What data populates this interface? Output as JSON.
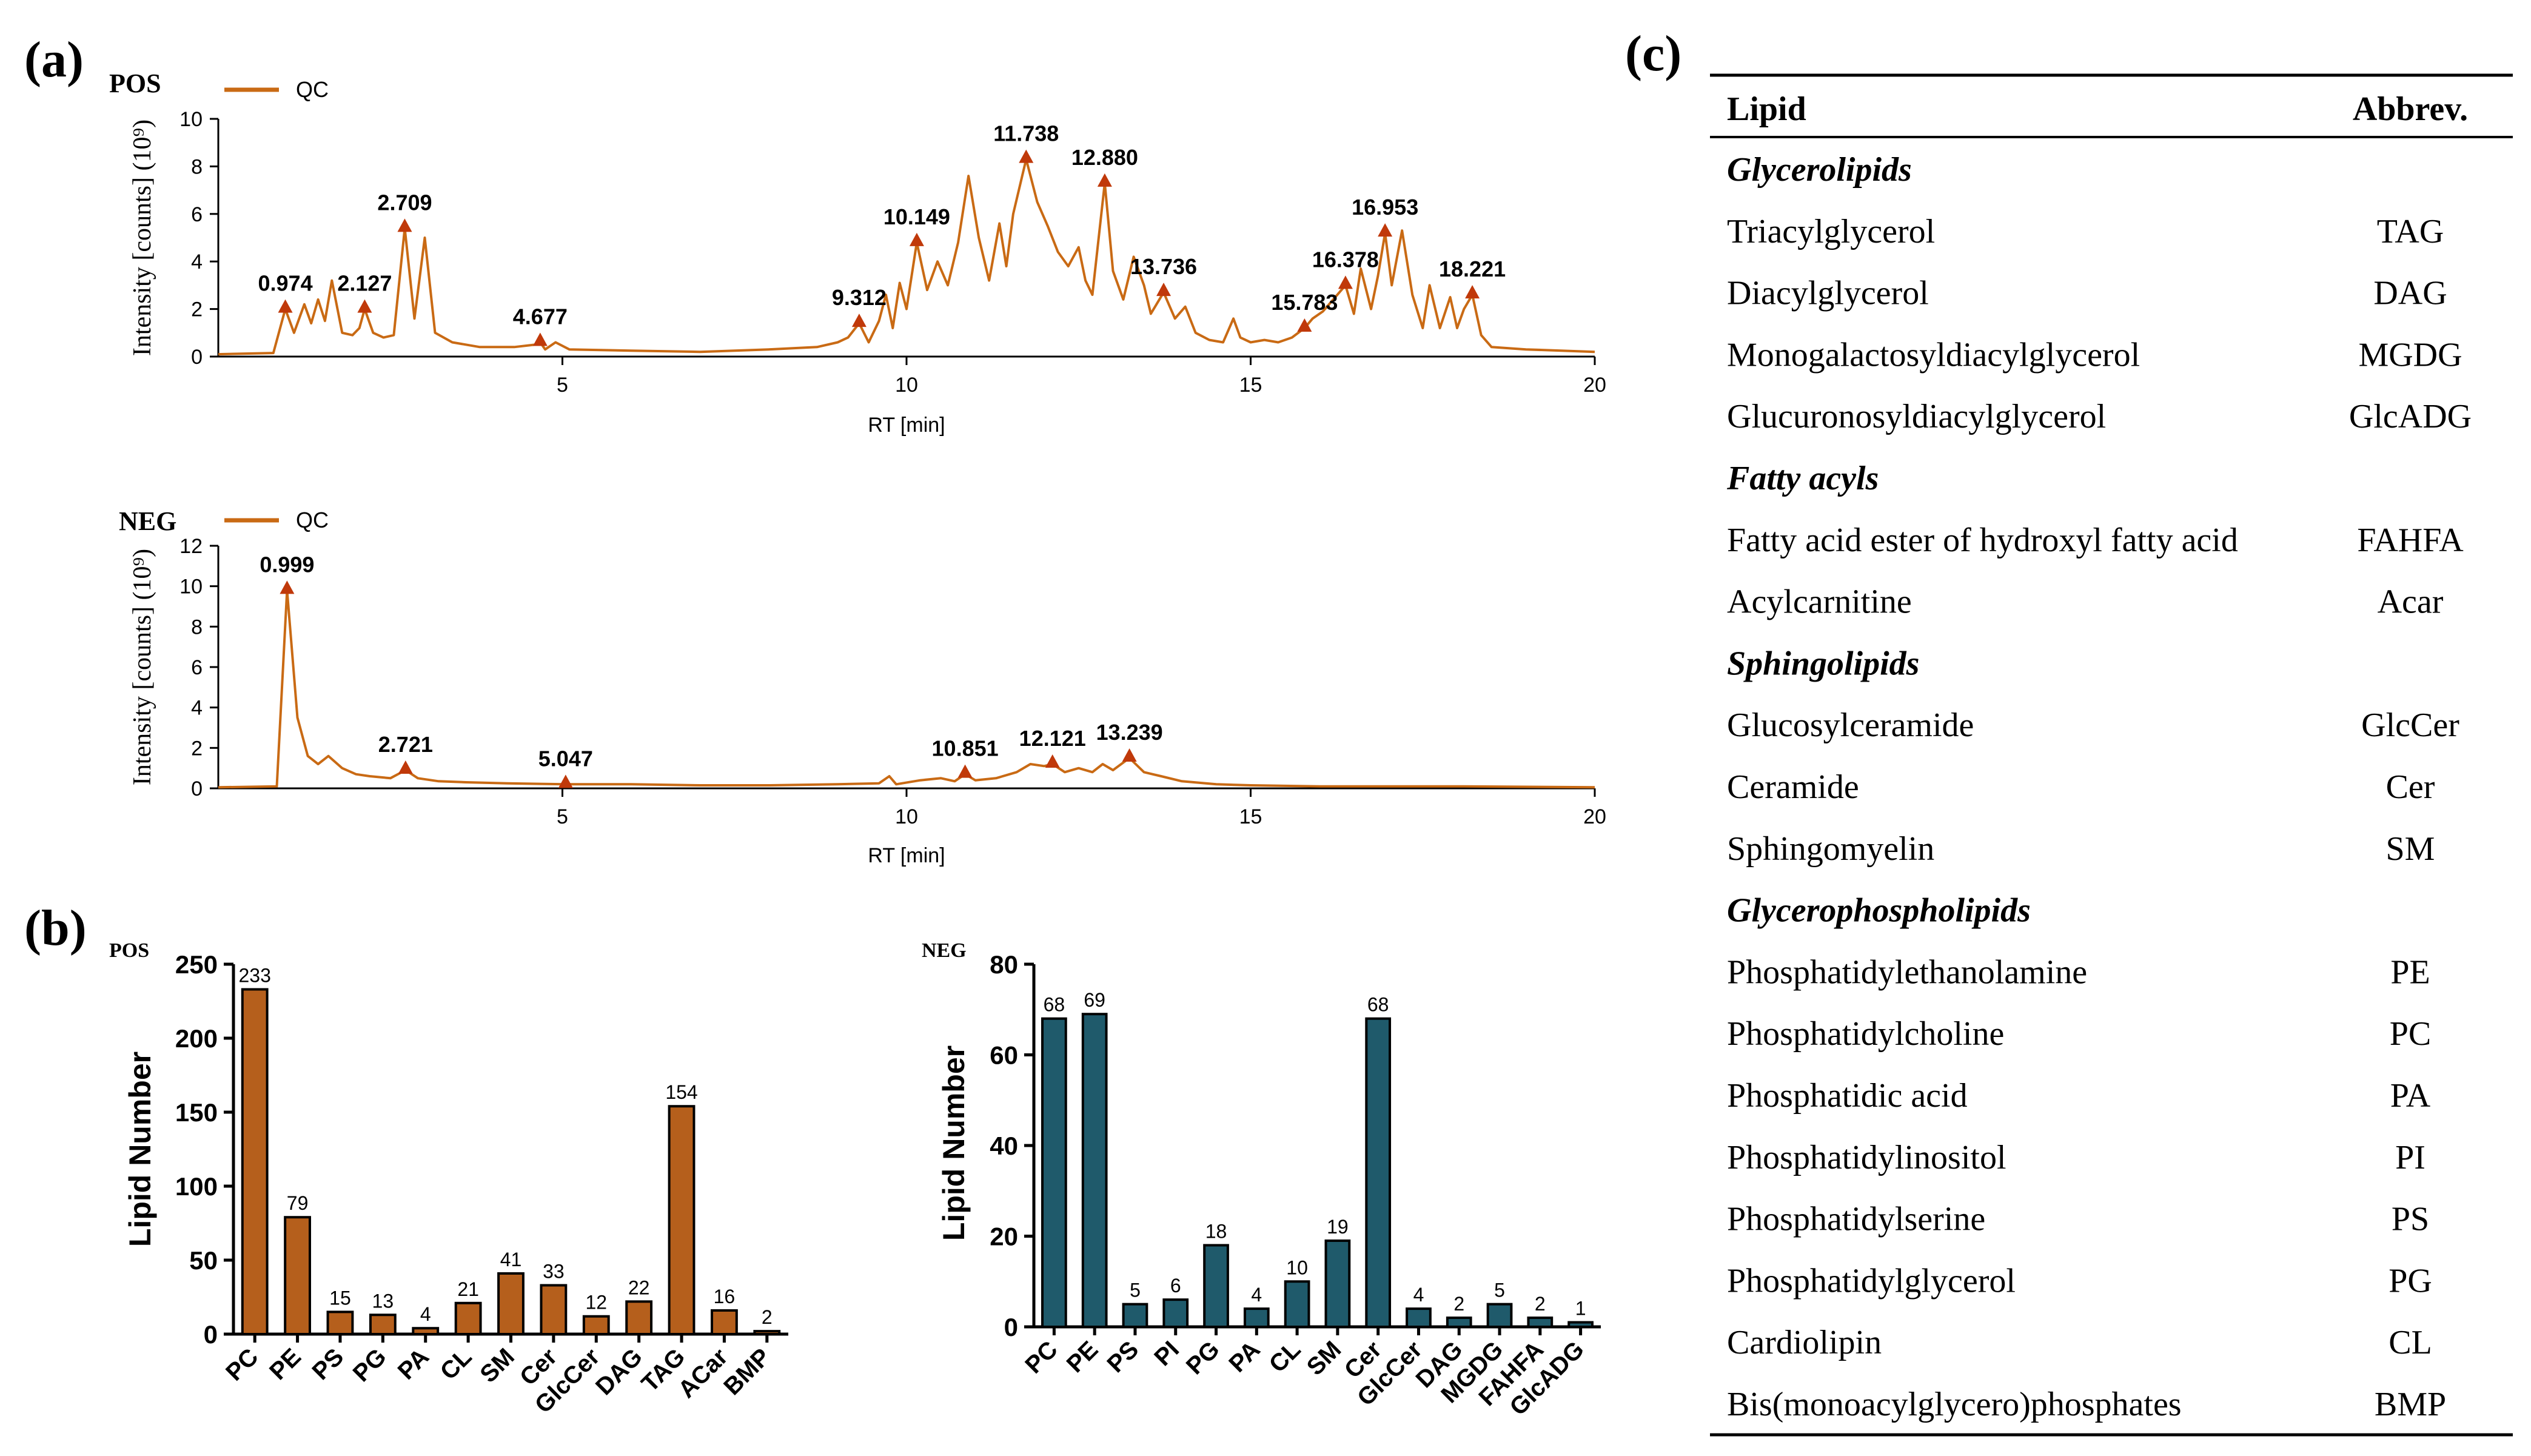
{
  "panels": {
    "a": "(a)",
    "b": "(b)",
    "c": "(c)"
  },
  "colors": {
    "chrom": "#c96a14",
    "marker": "#c0390a",
    "pos_bar": "#b55f1c",
    "neg_bar": "#1f5a6b",
    "axis": "#000000"
  },
  "chart_data": [
    {
      "id": "chromatogram-pos",
      "type": "line",
      "mode_label": "POS",
      "legend": "QC",
      "xlabel": "RT [min]",
      "ylabel": "Intensity [counts] (10⁹)",
      "xlim": [
        0,
        20
      ],
      "ylim": [
        0,
        10
      ],
      "xticks": [
        "5",
        "10",
        "15",
        "20"
      ],
      "yticks": [
        "0",
        "2",
        "4",
        "6",
        "8",
        "10"
      ],
      "peaks": [
        {
          "label": "0.974",
          "x": 0.974,
          "y": 2.0
        },
        {
          "label": "2.127",
          "x": 2.127,
          "y": 2.0
        },
        {
          "label": "2.709",
          "x": 2.709,
          "y": 5.4
        },
        {
          "label": "4.677",
          "x": 4.677,
          "y": 0.6
        },
        {
          "label": "9.312",
          "x": 9.312,
          "y": 1.4
        },
        {
          "label": "10.149",
          "x": 10.149,
          "y": 4.8
        },
        {
          "label": "11.738",
          "x": 11.738,
          "y": 8.3
        },
        {
          "label": "12.880",
          "x": 12.88,
          "y": 7.3
        },
        {
          "label": "13.736",
          "x": 13.736,
          "y": 2.7
        },
        {
          "label": "15.783",
          "x": 15.783,
          "y": 1.2
        },
        {
          "label": "16.378",
          "x": 16.378,
          "y": 3.0
        },
        {
          "label": "16.953",
          "x": 16.953,
          "y": 5.2
        },
        {
          "label": "18.221",
          "x": 18.221,
          "y": 2.6
        }
      ],
      "trace": [
        [
          0,
          0.1
        ],
        [
          0.8,
          0.15
        ],
        [
          0.974,
          2.0
        ],
        [
          1.1,
          1.0
        ],
        [
          1.25,
          2.2
        ],
        [
          1.35,
          1.4
        ],
        [
          1.45,
          2.4
        ],
        [
          1.55,
          1.5
        ],
        [
          1.65,
          3.2
        ],
        [
          1.8,
          1.0
        ],
        [
          1.95,
          0.9
        ],
        [
          2.05,
          1.2
        ],
        [
          2.127,
          2.0
        ],
        [
          2.25,
          1.0
        ],
        [
          2.4,
          0.8
        ],
        [
          2.55,
          0.9
        ],
        [
          2.709,
          5.4
        ],
        [
          2.85,
          1.6
        ],
        [
          3.0,
          5.0
        ],
        [
          3.15,
          1.0
        ],
        [
          3.4,
          0.6
        ],
        [
          3.8,
          0.4
        ],
        [
          4.3,
          0.4
        ],
        [
          4.6,
          0.5
        ],
        [
          4.677,
          0.6
        ],
        [
          4.75,
          0.3
        ],
        [
          4.9,
          0.6
        ],
        [
          5.1,
          0.3
        ],
        [
          6,
          0.25
        ],
        [
          7,
          0.2
        ],
        [
          8,
          0.3
        ],
        [
          8.7,
          0.4
        ],
        [
          9.0,
          0.6
        ],
        [
          9.15,
          0.8
        ],
        [
          9.312,
          1.4
        ],
        [
          9.45,
          0.6
        ],
        [
          9.6,
          1.5
        ],
        [
          9.7,
          2.6
        ],
        [
          9.8,
          1.2
        ],
        [
          9.9,
          3.1
        ],
        [
          10.0,
          2.0
        ],
        [
          10.149,
          4.8
        ],
        [
          10.3,
          2.8
        ],
        [
          10.45,
          4.0
        ],
        [
          10.6,
          3.0
        ],
        [
          10.75,
          4.8
        ],
        [
          10.9,
          7.6
        ],
        [
          11.05,
          5.0
        ],
        [
          11.2,
          3.2
        ],
        [
          11.35,
          5.6
        ],
        [
          11.45,
          3.8
        ],
        [
          11.55,
          6.0
        ],
        [
          11.738,
          8.3
        ],
        [
          11.9,
          6.5
        ],
        [
          12.05,
          5.5
        ],
        [
          12.2,
          4.4
        ],
        [
          12.35,
          3.8
        ],
        [
          12.5,
          4.6
        ],
        [
          12.6,
          3.2
        ],
        [
          12.7,
          2.6
        ],
        [
          12.88,
          7.3
        ],
        [
          13.0,
          3.6
        ],
        [
          13.15,
          2.4
        ],
        [
          13.3,
          4.2
        ],
        [
          13.45,
          3.0
        ],
        [
          13.55,
          1.8
        ],
        [
          13.736,
          2.7
        ],
        [
          13.9,
          1.6
        ],
        [
          14.05,
          2.1
        ],
        [
          14.2,
          1.0
        ],
        [
          14.4,
          0.7
        ],
        [
          14.6,
          0.6
        ],
        [
          14.75,
          1.6
        ],
        [
          14.85,
          0.8
        ],
        [
          15.0,
          0.6
        ],
        [
          15.2,
          0.7
        ],
        [
          15.4,
          0.6
        ],
        [
          15.6,
          0.8
        ],
        [
          15.783,
          1.2
        ],
        [
          15.9,
          1.6
        ],
        [
          16.05,
          1.9
        ],
        [
          16.2,
          2.4
        ],
        [
          16.378,
          3.0
        ],
        [
          16.5,
          1.8
        ],
        [
          16.6,
          3.7
        ],
        [
          16.75,
          2.0
        ],
        [
          16.85,
          3.4
        ],
        [
          16.953,
          5.2
        ],
        [
          17.05,
          3.0
        ],
        [
          17.2,
          5.3
        ],
        [
          17.35,
          2.6
        ],
        [
          17.5,
          1.2
        ],
        [
          17.6,
          3.0
        ],
        [
          17.75,
          1.2
        ],
        [
          17.9,
          2.5
        ],
        [
          18.0,
          1.2
        ],
        [
          18.1,
          2.0
        ],
        [
          18.221,
          2.6
        ],
        [
          18.35,
          0.9
        ],
        [
          18.5,
          0.4
        ],
        [
          19.0,
          0.3
        ],
        [
          20,
          0.2
        ]
      ]
    },
    {
      "id": "chromatogram-neg",
      "type": "line",
      "mode_label": "NEG",
      "legend": "QC",
      "xlabel": "RT [min]",
      "ylabel": "Intensity [counts] (10⁹)",
      "xlim": [
        0,
        20
      ],
      "ylim": [
        0,
        12
      ],
      "xticks": [
        "5",
        "10",
        "15",
        "20"
      ],
      "yticks": [
        "0",
        "2",
        "4",
        "6",
        "8",
        "10",
        "12"
      ],
      "peaks": [
        {
          "label": "0.999",
          "x": 0.999,
          "y": 9.8
        },
        {
          "label": "2.721",
          "x": 2.721,
          "y": 0.9
        },
        {
          "label": "5.047",
          "x": 5.047,
          "y": 0.2
        },
        {
          "label": "10.851",
          "x": 10.851,
          "y": 0.7
        },
        {
          "label": "12.121",
          "x": 12.121,
          "y": 1.2
        },
        {
          "label": "13.239",
          "x": 13.239,
          "y": 1.5
        }
      ],
      "trace": [
        [
          0,
          0.05
        ],
        [
          0.85,
          0.1
        ],
        [
          0.999,
          9.8
        ],
        [
          1.15,
          3.5
        ],
        [
          1.3,
          1.6
        ],
        [
          1.45,
          1.2
        ],
        [
          1.6,
          1.6
        ],
        [
          1.8,
          1.0
        ],
        [
          2.0,
          0.7
        ],
        [
          2.2,
          0.6
        ],
        [
          2.5,
          0.5
        ],
        [
          2.721,
          0.9
        ],
        [
          2.9,
          0.5
        ],
        [
          3.2,
          0.35
        ],
        [
          3.6,
          0.3
        ],
        [
          4.2,
          0.25
        ],
        [
          5.047,
          0.2
        ],
        [
          6,
          0.2
        ],
        [
          7,
          0.15
        ],
        [
          8,
          0.15
        ],
        [
          9,
          0.2
        ],
        [
          9.6,
          0.25
        ],
        [
          9.75,
          0.6
        ],
        [
          9.85,
          0.2
        ],
        [
          10.2,
          0.4
        ],
        [
          10.5,
          0.5
        ],
        [
          10.7,
          0.35
        ],
        [
          10.851,
          0.7
        ],
        [
          11.0,
          0.4
        ],
        [
          11.3,
          0.5
        ],
        [
          11.6,
          0.8
        ],
        [
          11.8,
          1.2
        ],
        [
          12.0,
          1.1
        ],
        [
          12.121,
          1.2
        ],
        [
          12.3,
          0.8
        ],
        [
          12.5,
          1.0
        ],
        [
          12.7,
          0.8
        ],
        [
          12.85,
          1.2
        ],
        [
          13.0,
          0.9
        ],
        [
          13.239,
          1.5
        ],
        [
          13.45,
          0.8
        ],
        [
          13.7,
          0.6
        ],
        [
          14.0,
          0.35
        ],
        [
          14.5,
          0.2
        ],
        [
          15,
          0.15
        ],
        [
          16,
          0.1
        ],
        [
          18,
          0.1
        ],
        [
          20,
          0.05
        ]
      ]
    },
    {
      "id": "bar-pos",
      "type": "bar",
      "mode_label": "POS",
      "ylabel": "Lipid Number",
      "ylim": [
        0,
        250
      ],
      "yticks": [
        "0",
        "50",
        "100",
        "150",
        "200",
        "250"
      ],
      "categories": [
        "PC",
        "PE",
        "PS",
        "PG",
        "PA",
        "CL",
        "SM",
        "Cer",
        "GlcCer",
        "DAG",
        "TAG",
        "ACar",
        "BMP"
      ],
      "values": [
        233,
        79,
        15,
        13,
        4,
        21,
        41,
        33,
        12,
        22,
        154,
        16,
        2
      ],
      "value_labels": [
        "233",
        "79",
        "15",
        "13",
        "4",
        "21",
        "41",
        "33",
        "12",
        "22",
        "154",
        "16",
        "2"
      ]
    },
    {
      "id": "bar-neg",
      "type": "bar",
      "mode_label": "NEG",
      "ylabel": "Lipid Number",
      "ylim": [
        0,
        80
      ],
      "yticks": [
        "0",
        "20",
        "40",
        "60",
        "80"
      ],
      "categories": [
        "PC",
        "PE",
        "PS",
        "PI",
        "PG",
        "PA",
        "CL",
        "SM",
        "Cer",
        "GlcCer",
        "DAG",
        "MGDG",
        "FAHFA",
        "GlcADG"
      ],
      "values": [
        68,
        69,
        5,
        6,
        18,
        4,
        10,
        19,
        68,
        4,
        2,
        5,
        2,
        1
      ],
      "value_labels": [
        "68",
        "69",
        "5",
        "6",
        "18",
        "4",
        "10",
        "19",
        "68",
        "4",
        "2",
        "5",
        "2",
        "1"
      ]
    },
    {
      "id": "lipid-table",
      "type": "table",
      "columns": [
        "Lipid",
        "Abbrev."
      ],
      "rows": [
        {
          "category": "Glycerolipids"
        },
        {
          "name": "Triacylglycerol",
          "abbrev": "TAG"
        },
        {
          "name": "Diacylglycerol",
          "abbrev": "DAG"
        },
        {
          "name": "Monogalactosyldiacylglycerol",
          "abbrev": "MGDG"
        },
        {
          "name": "Glucuronosyldiacylglycerol",
          "abbrev": "GlcADG"
        },
        {
          "category": "Fatty acyls"
        },
        {
          "name": "Fatty acid ester of hydroxyl fatty acid",
          "abbrev": "FAHFA"
        },
        {
          "name": "Acylcarnitine",
          "abbrev": "Acar"
        },
        {
          "category": "Sphingolipids"
        },
        {
          "name": "Glucosylceramide",
          "abbrev": "GlcCer"
        },
        {
          "name": "Ceramide",
          "abbrev": "Cer"
        },
        {
          "name": "Sphingomyelin",
          "abbrev": "SM"
        },
        {
          "category": "Glycerophospholipids"
        },
        {
          "name": "Phosphatidylethanolamine",
          "abbrev": "PE"
        },
        {
          "name": "Phosphatidylcholine",
          "abbrev": "PC"
        },
        {
          "name": "Phosphatidic acid",
          "abbrev": "PA"
        },
        {
          "name": "Phosphatidylinositol",
          "abbrev": "PI"
        },
        {
          "name": "Phosphatidylserine",
          "abbrev": "PS"
        },
        {
          "name": "Phosphatidylglycerol",
          "abbrev": "PG"
        },
        {
          "name": "Cardiolipin",
          "abbrev": "CL"
        },
        {
          "name": "Bis(monoacylglycero)phosphates",
          "abbrev": "BMP"
        }
      ]
    }
  ]
}
